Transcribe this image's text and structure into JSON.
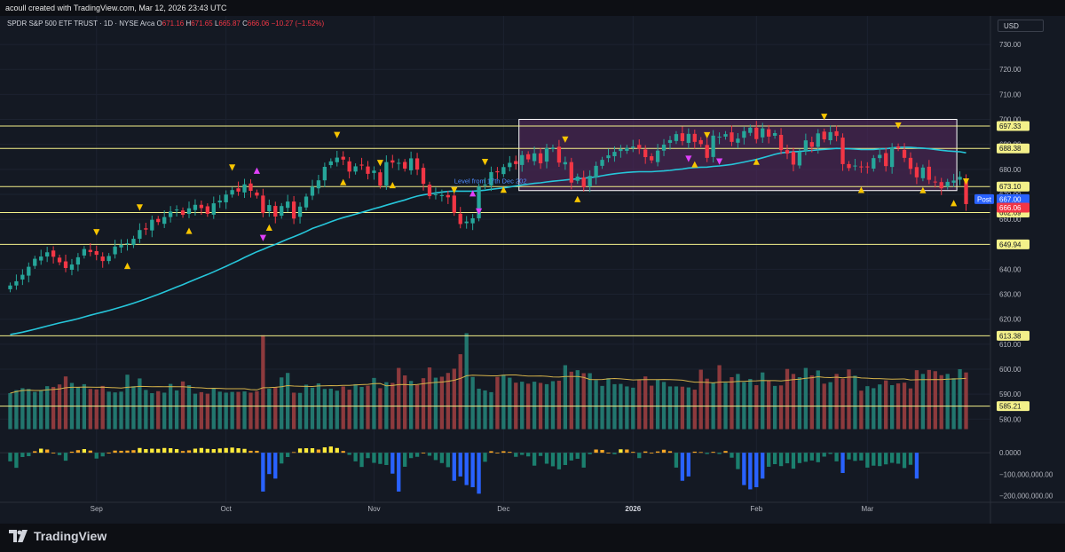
{
  "header": {
    "created_by": "acoull created with TradingView.com, Mar 12, 2026 23:43 UTC"
  },
  "legend": {
    "symbol": "SPDR S&P 500 ETF TRUST · 1D · NYSE Arca",
    "o_label": "O",
    "o": "671.16",
    "h_label": "H",
    "h": "671.65",
    "l_label": "L",
    "l": "665.87",
    "c_label": "C",
    "c": "666.06",
    "change": "−10.27 (−1.52%)"
  },
  "currency": "USD",
  "logo_text": "TradingView",
  "colors": {
    "up": "#26a69a",
    "down": "#f23645",
    "up_vol": "#22766e",
    "down_vol": "#8d3a3d",
    "level": "#f3f08a",
    "ma": "#26c6da",
    "box_border": "#ffffff",
    "box_fill": "#5a2a63",
    "tri_yellow": "#f7c500",
    "tri_magenta": "#e040fb",
    "osc_pos_bright": "#ffeb3b",
    "osc_pos_dark": "#f9a825",
    "osc_neg_bright": "#2962ff",
    "osc_neg_dark": "#1b7f6e"
  },
  "chart_data": {
    "type": "candlestick",
    "title": "SPDR S&P 500 ETF TRUST · 1D · NYSE Arca",
    "ylim": [
      573,
      735
    ],
    "y_ticks": [
      580,
      590,
      600,
      610,
      620,
      630,
      640,
      650,
      660,
      670,
      680,
      690,
      700,
      710,
      720,
      730
    ],
    "y_tick_labels": [
      "580.00",
      "590.00",
      "600.00",
      "610.00",
      "620.00",
      "630.00",
      "640.00",
      "650.00",
      "660.00",
      "670.00",
      "680.00",
      "690.00",
      "700.00",
      "710.00",
      "720.00",
      "730.00"
    ],
    "x_labels": [
      "Sep",
      "Oct",
      "Nov",
      "Dec",
      "2026",
      "Feb",
      "Mar"
    ],
    "x_label_index": [
      14,
      35,
      59,
      80,
      101,
      121,
      139
    ],
    "levels": [
      {
        "value": 697.33,
        "label": "697.33"
      },
      {
        "value": 688.38,
        "label": "688.38"
      },
      {
        "value": 673.1,
        "label": "673.10"
      },
      {
        "value": 662.69,
        "label": "662.69"
      },
      {
        "value": 649.94,
        "label": "649.94"
      },
      {
        "value": 613.38,
        "label": "613.38"
      },
      {
        "value": 585.21,
        "label": "585.21"
      }
    ],
    "box": {
      "start_index": 83,
      "end_index": 153,
      "top": 700.0,
      "bottom": 671.5
    },
    "annotation": "Level from 17th Dec 202",
    "price_tags": [
      {
        "value": 667.0,
        "label": "667.00",
        "tag": "Post",
        "color": "#2962ff"
      },
      {
        "value": 666.06,
        "label": "666.06",
        "tag": "",
        "color": "#f23645"
      }
    ],
    "close": [
      633.5,
      635.2,
      637.8,
      641.0,
      644.2,
      645.1,
      646.8,
      645.0,
      642.8,
      640.5,
      641.9,
      644.8,
      648.1,
      646.9,
      645.8,
      643.3,
      645.3,
      649.1,
      649.8,
      650.4,
      652.2,
      655.7,
      655.9,
      659.8,
      658.9,
      660.9,
      663.1,
      663.9,
      661.8,
      664.4,
      665.8,
      664.5,
      662.2,
      666.4,
      667.5,
      669.9,
      671.7,
      671.1,
      674.0,
      671.4,
      669.5,
      662.5,
      665.7,
      661.1,
      665.3,
      667.1,
      660.3,
      665.1,
      669.1,
      673.1,
      675.6,
      681.0,
      683.2,
      684.7,
      683.9,
      679.1,
      681.2,
      681.5,
      678.2,
      679.5,
      673.5,
      682.9,
      682.7,
      682.6,
      680.3,
      684.4,
      679.9,
      674.2,
      669.3,
      670.0,
      669.7,
      668.8,
      662.6,
      658.1,
      659.1,
      660.4,
      673.1,
      673.9,
      678.9,
      678.8,
      680.9,
      682.6,
      682.1,
      685.7,
      684.0,
      686.4,
      682.4,
      688.5,
      688.7,
      682.7,
      682.9,
      674.7,
      677.1,
      672.8,
      677.4,
      681.4,
      683.8,
      685.6,
      687.0,
      688.1,
      688.6,
      689.1,
      688.3,
      684.9,
      683.6,
      687.5,
      689.9,
      691.7,
      694.1,
      691.3,
      694.2,
      691.0,
      690.1,
      684.6,
      693.5,
      693.1,
      694.1,
      691.0,
      692.3,
      695.3,
      696.7,
      692.1,
      696.4,
      693.1,
      694.5,
      687.7,
      686.3,
      681.9,
      687.0,
      691.6,
      689.0,
      694.4,
      692.0,
      694.9,
      693.4,
      682.1,
      680.5,
      681.5,
      680.8,
      681.0,
      684.5,
      685.8,
      681.3,
      688.8,
      688.5,
      684.6,
      680.2,
      676.8,
      680.7,
      675.8,
      674.9,
      672.4,
      675.0,
      675.5,
      677.0,
      666.1
    ],
    "volume": [
      590.4,
      591.6,
      592.4,
      592.1,
      590.9,
      591.4,
      593.2,
      592.9,
      593.9,
      597.1,
      594.5,
      592.8,
      594.0,
      592.1,
      591.9,
      593.3,
      591.0,
      590.7,
      591.0,
      597.8,
      593.2,
      596.3,
      591.7,
      590.4,
      591.2,
      590.6,
      594.1,
      591.5,
      595.1,
      593.6,
      590.2,
      590.8,
      590.2,
      592.5,
      591.0,
      590.6,
      590.9,
      590.9,
      591.1,
      590.6,
      591.2,
      613.6,
      592.2,
      592.9,
      596.7,
      598.5,
      590.6,
      590.5,
      593.8,
      592.6,
      594.3,
      592.1,
      592.2,
      591.4,
      593.1,
      591.8,
      594.0,
      592.9,
      593.4,
      596.5,
      592.4,
      594.8,
      594.5,
      600.5,
      597.5,
      595.3,
      593.7,
      596.4,
      600.7,
      596.6,
      597.0,
      598.5,
      600.2,
      606.0,
      614.4,
      596.9,
      592.2,
      591.5,
      590.8,
      596.9,
      597.8,
      596.6,
      594.6,
      595.0,
      594.2,
      595.0,
      594.5,
      594.0,
      595.2,
      595.4,
      601.6,
      599.0,
      599.6,
      598.4,
      598.4,
      595.6,
      593.3,
      596.4,
      594.0,
      594.1,
      593.1,
      592.6,
      595.7,
      597.1,
      593.4,
      595.8,
      594.9,
      593.1,
      593.1,
      593.0,
      592.7,
      591.8,
      599.8,
      596.2,
      594.6,
      601.6,
      594.6,
      596.8,
      598.1,
      594.8,
      596.1,
      593.6,
      598.7,
      595.5,
      593.3,
      593.5,
      600.1,
      598.1,
      596.8,
      600.5,
      597.5,
      599.5,
      594.2,
      594.8,
      598.1,
      596.2,
      599.9,
      597.4,
      591.4,
      593.2,
      592.4,
      593.9,
      595.5,
      593.6,
      594.3,
      594.6,
      592.3,
      599.6,
      598.1,
      599.7,
      599.2,
      597.6,
      598.1,
      596.4,
      600.0,
      598.7
    ],
    "volume_baseline": 576.0,
    "oscillator": {
      "ticks": [
        0,
        -100000000,
        -200000000
      ],
      "tick_labels": [
        "0.0000",
        "−100,000,000.00",
        "−200,000,000.00"
      ],
      "ylim": [
        -230000000,
        50000000
      ],
      "values": [
        -40000000.0,
        -70000000.0,
        -20000000.0,
        -16000000.0,
        7000000.0,
        19000000.0,
        15000000.0,
        0.0,
        -11000000.0,
        -37000000.0,
        5000000.0,
        12000000.0,
        17000000.0,
        10000000.0,
        -27000000.0,
        -17000000.0,
        0.0,
        10000000.0,
        9000000.0,
        10000000.0,
        12000000.0,
        22000000.0,
        17000000.0,
        19000000.0,
        18000000.0,
        22000000.0,
        21000000.0,
        17000000.0,
        8000000.0,
        11000000.0,
        19000000.0,
        22000000.0,
        18000000.0,
        17000000.0,
        20000000.0,
        22000000.0,
        24000000.0,
        21000000.0,
        18000000.0,
        9000000.0,
        9000000.0,
        -180000000.0,
        -99000000.0,
        -120000000.0,
        -50000000.0,
        -20000000.0,
        3000000.0,
        20000000.0,
        21000000.0,
        21000000.0,
        15000000.0,
        25000000.0,
        29000000.0,
        22000000.0,
        8000000.0,
        -10000000.0,
        -40000000.0,
        -66000000.0,
        -25000000.0,
        -47000000.0,
        -52000000.0,
        -57000000.0,
        -97000000.0,
        -180000000.0,
        -65000000.0,
        -25000000.0,
        -19000000.0,
        0.0,
        -14000000.0,
        -34000000.0,
        -48000000.0,
        -67000000.0,
        -130000000.0,
        -110000000.0,
        -150000000.0,
        -160000000.0,
        -190000000.0,
        -42000000.0,
        7000000.0,
        0.0,
        7000000.0,
        4000000.0,
        -19000000.0,
        -10000000.0,
        -17000000.0,
        -60000000.0,
        -15000000.0,
        -51000000.0,
        -63000000.0,
        -77000000.0,
        -57000000.0,
        -36000000.0,
        -28000000.0,
        -69000000.0,
        -7000000.0,
        15000000.0,
        13000000.0,
        0.0,
        -7000000.0,
        16000000.0,
        15000000.0,
        4000000.0,
        -25000000.0,
        6000000.0,
        0.0,
        6000000.0,
        14000000.0,
        7000000.0,
        -69000000.0,
        -130000000.0,
        -110000000.0,
        5000000.0,
        3000000.0,
        -6000000.0,
        4000000.0,
        -6000000.0,
        8000000.0,
        -23000000.0,
        -76000000.0,
        -150000000.0,
        -170000000.0,
        -160000000.0,
        -120000000.0,
        -65000000.0,
        -53000000.0,
        -62000000.0,
        -49000000.0,
        -74000000.0,
        -48000000.0,
        -42000000.0,
        -36000000.0,
        -44000000.0,
        -18000000.0,
        -6000000.0,
        -40000000.0,
        -94000000.0,
        -31000000.0,
        -38000000.0,
        -36000000.0,
        -69000000.0,
        -60000000.0,
        -62000000.0,
        -54000000.0,
        -47000000.0,
        -51000000.0,
        -71000000.0,
        -56000000.0,
        -120000000.0
      ]
    },
    "markers_up_yellow": [
      19,
      29,
      42,
      54,
      62,
      80,
      92,
      111,
      121,
      138,
      148,
      153
    ],
    "markers_down_yellow": [
      14,
      21,
      36,
      53,
      60,
      72,
      77,
      90,
      113,
      132,
      144,
      155
    ],
    "markers_magenta_up": [
      40,
      75
    ],
    "markers_magenta_down": [
      41,
      76,
      115,
      110
    ],
    "ma_period": 50
  }
}
